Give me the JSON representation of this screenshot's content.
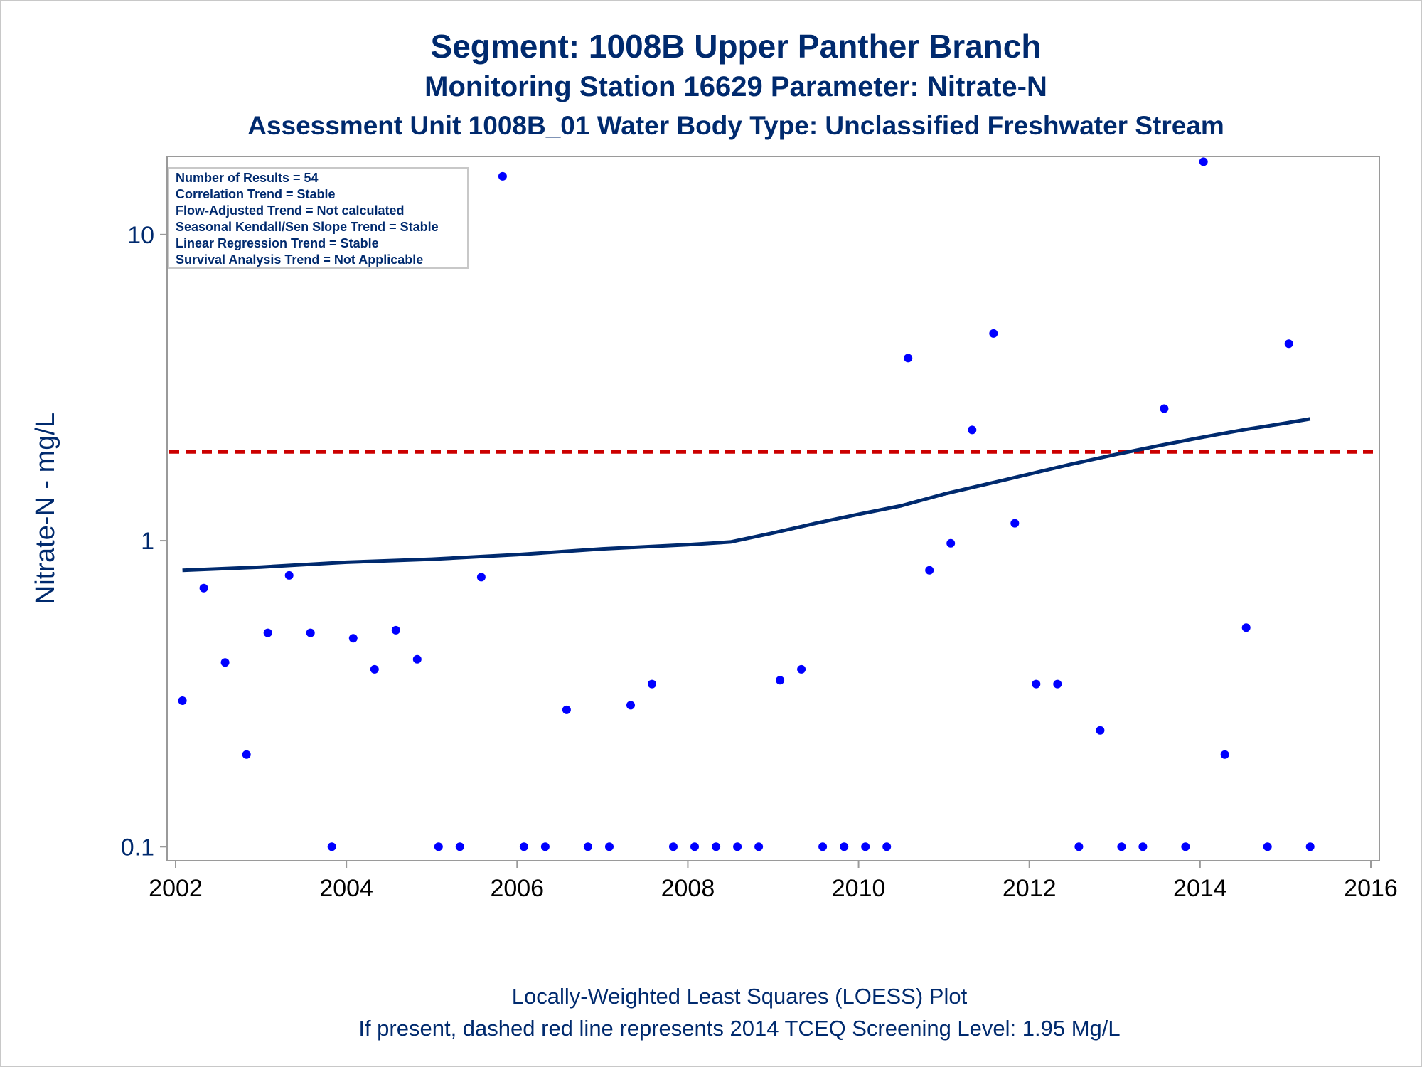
{
  "titles": {
    "line1": "Segment: 1008B  Upper Panther Branch",
    "line2": "Monitoring Station 16629 Parameter: Nitrate-N",
    "line3": "Assessment Unit 1008B_01   Water Body Type: Unclassified Freshwater Stream"
  },
  "footnotes": {
    "line1": "Locally-Weighted Least Squares (LOESS) Plot",
    "line2": "If present, dashed red line represents 2014 TCEQ Screening Level: 1.95 Mg/L"
  },
  "stats_box": [
    "Number of Results = 54",
    "Correlation Trend = Stable",
    "Flow-Adjusted Trend = Not calculated",
    "Seasonal Kendall/Sen Slope Trend = Stable",
    "Linear Regression Trend = Stable",
    "Survival Analysis Trend = Not Applicable"
  ],
  "colors": {
    "title": "#002a6e",
    "points": "#0000ff",
    "loess": "#002a6e",
    "screening": "#cc0000",
    "axis": "#9a9a9a"
  },
  "chart_data": {
    "type": "scatter",
    "xlabel": "",
    "ylabel": "Nitrate-N - mg/L",
    "y_scale": "log",
    "xlim": [
      2001.9,
      2016.1
    ],
    "ylim": [
      0.09,
      18
    ],
    "x_ticks": [
      2002,
      2004,
      2006,
      2008,
      2010,
      2012,
      2014,
      2016
    ],
    "y_ticks": [
      0.1,
      1,
      10
    ],
    "y_tick_labels": [
      "0.1",
      "1",
      "10"
    ],
    "grid": false,
    "legend": "top-left",
    "screening_level": 1.95,
    "points": [
      [
        2002.08,
        0.3
      ],
      [
        2002.33,
        0.7
      ],
      [
        2002.58,
        0.4
      ],
      [
        2002.83,
        0.2
      ],
      [
        2003.08,
        0.5
      ],
      [
        2003.33,
        0.77
      ],
      [
        2003.58,
        0.5
      ],
      [
        2003.83,
        0.1
      ],
      [
        2004.08,
        0.48
      ],
      [
        2004.33,
        0.38
      ],
      [
        2004.58,
        0.51
      ],
      [
        2004.83,
        0.41
      ],
      [
        2005.08,
        0.1
      ],
      [
        2005.33,
        0.1
      ],
      [
        2005.58,
        0.76
      ],
      [
        2005.83,
        15.5
      ],
      [
        2006.08,
        0.1
      ],
      [
        2006.33,
        0.1
      ],
      [
        2006.58,
        0.28
      ],
      [
        2006.83,
        0.1
      ],
      [
        2007.08,
        0.1
      ],
      [
        2007.33,
        0.29
      ],
      [
        2007.58,
        0.34
      ],
      [
        2007.83,
        0.1
      ],
      [
        2008.08,
        0.1
      ],
      [
        2008.33,
        0.1
      ],
      [
        2008.58,
        0.1
      ],
      [
        2008.83,
        0.1
      ],
      [
        2009.08,
        0.35
      ],
      [
        2009.33,
        0.38
      ],
      [
        2009.58,
        0.1
      ],
      [
        2009.83,
        0.1
      ],
      [
        2010.08,
        0.1
      ],
      [
        2010.33,
        0.1
      ],
      [
        2010.58,
        3.95
      ],
      [
        2010.83,
        0.8
      ],
      [
        2011.08,
        0.98
      ],
      [
        2011.33,
        2.3
      ],
      [
        2011.58,
        4.75
      ],
      [
        2011.83,
        1.14
      ],
      [
        2012.08,
        0.34
      ],
      [
        2012.33,
        0.34
      ],
      [
        2012.58,
        0.1
      ],
      [
        2012.83,
        0.24
      ],
      [
        2013.08,
        0.1
      ],
      [
        2013.33,
        0.1
      ],
      [
        2013.58,
        2.7
      ],
      [
        2013.83,
        0.1
      ],
      [
        2014.04,
        17.3
      ],
      [
        2014.29,
        0.2
      ],
      [
        2014.54,
        0.52
      ],
      [
        2014.79,
        0.1
      ],
      [
        2015.04,
        4.4
      ],
      [
        2015.29,
        0.1
      ]
    ],
    "loess": [
      [
        2002.08,
        0.8
      ],
      [
        2003.0,
        0.82
      ],
      [
        2004.0,
        0.85
      ],
      [
        2005.0,
        0.87
      ],
      [
        2006.0,
        0.9
      ],
      [
        2007.0,
        0.94
      ],
      [
        2008.0,
        0.97
      ],
      [
        2008.5,
        0.99
      ],
      [
        2009.0,
        1.06
      ],
      [
        2009.5,
        1.14
      ],
      [
        2010.0,
        1.22
      ],
      [
        2010.5,
        1.3
      ],
      [
        2011.0,
        1.42
      ],
      [
        2011.5,
        1.53
      ],
      [
        2012.0,
        1.65
      ],
      [
        2012.5,
        1.78
      ],
      [
        2013.0,
        1.91
      ],
      [
        2013.5,
        2.04
      ],
      [
        2014.0,
        2.17
      ],
      [
        2014.5,
        2.3
      ],
      [
        2015.0,
        2.42
      ],
      [
        2015.29,
        2.5
      ]
    ]
  }
}
